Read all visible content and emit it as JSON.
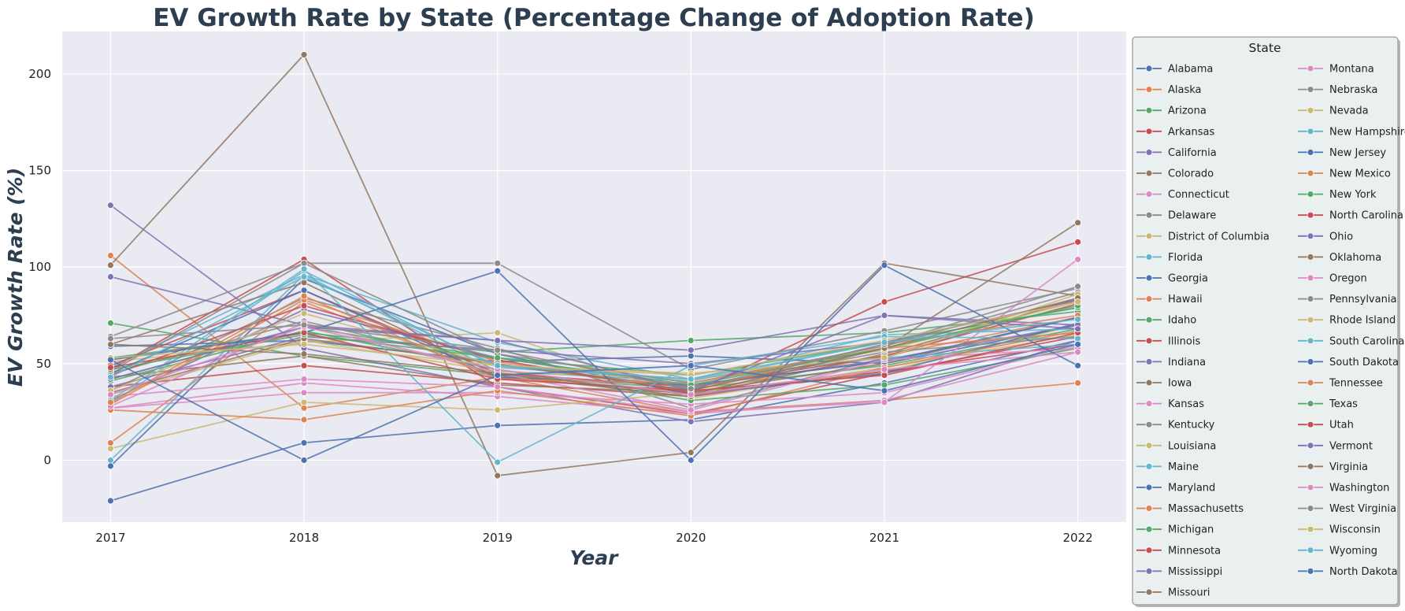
{
  "chart_data": {
    "type": "line",
    "title": "EV Growth Rate by State (Percentage Change of Adoption Rate)",
    "xlabel": "Year",
    "ylabel": "EV Growth Rate (%)",
    "x": [
      2017,
      2018,
      2019,
      2020,
      2021,
      2022
    ],
    "ylim": [
      -32,
      222
    ],
    "yticks": [
      0,
      50,
      100,
      150,
      200
    ],
    "grid": true,
    "legend_title": "State",
    "legend_position": "right-outside",
    "palette": [
      "#4c72b0",
      "#dd8452",
      "#55a868",
      "#c44e52",
      "#8172b3",
      "#937860",
      "#da8bc3",
      "#8c8c8c",
      "#ccb974",
      "#64b5cd"
    ],
    "series": [
      {
        "name": "Alabama",
        "values": [
          -21,
          9,
          18,
          21,
          40,
          62
        ]
      },
      {
        "name": "Alaska",
        "values": [
          106,
          27,
          43,
          25,
          31,
          40
        ]
      },
      {
        "name": "Arizona",
        "values": [
          71,
          54,
          44,
          37,
          49,
          68
        ]
      },
      {
        "name": "Arkansas",
        "values": [
          47,
          104,
          38,
          24,
          45,
          64
        ]
      },
      {
        "name": "California",
        "values": [
          132,
          58,
          38,
          20,
          30,
          62
        ]
      },
      {
        "name": "Colorado",
        "values": [
          101,
          210,
          -8,
          4,
          102,
          85
        ]
      },
      {
        "name": "Connecticut",
        "values": [
          27,
          40,
          33,
          24,
          31,
          56
        ]
      },
      {
        "name": "Delaware",
        "values": [
          36,
          84,
          58,
          27,
          53,
          84
        ]
      },
      {
        "name": "District of Columbia",
        "values": [
          6,
          30,
          26,
          35,
          46,
          70
        ]
      },
      {
        "name": "Florida",
        "values": [
          48,
          96,
          46,
          41,
          61,
          79
        ]
      },
      {
        "name": "Georgia",
        "values": [
          59,
          62,
          51,
          54,
          50,
          70
        ]
      },
      {
        "name": "Hawaii",
        "values": [
          9,
          82,
          43,
          35,
          54,
          74
        ]
      },
      {
        "name": "Idaho",
        "values": [
          53,
          66,
          56,
          62,
          66,
          77
        ]
      },
      {
        "name": "Illinois",
        "values": [
          38,
          49,
          40,
          33,
          46,
          60
        ]
      },
      {
        "name": "Indiana",
        "values": [
          31,
          78,
          53,
          38,
          52,
          70
        ]
      },
      {
        "name": "Iowa",
        "values": [
          43,
          54,
          39,
          35,
          50,
          74
        ]
      },
      {
        "name": "Kansas",
        "values": [
          27,
          35,
          35,
          29,
          35,
          59
        ]
      },
      {
        "name": "Kentucky",
        "values": [
          64,
          102,
          102,
          47,
          67,
          89
        ]
      },
      {
        "name": "Louisiana",
        "values": [
          51,
          61,
          66,
          32,
          48,
          65
        ]
      },
      {
        "name": "Maine",
        "values": [
          0,
          96,
          61,
          42,
          53,
          60
        ]
      },
      {
        "name": "Maryland",
        "values": [
          -3,
          94,
          55,
          34,
          45,
          71
        ]
      },
      {
        "name": "Massachusetts",
        "values": [
          26,
          21,
          36,
          23,
          48,
          67
        ]
      },
      {
        "name": "Michigan",
        "values": [
          41,
          67,
          47,
          31,
          39,
          58
        ]
      },
      {
        "name": "Minnesota",
        "values": [
          49,
          88,
          45,
          38,
          54,
          81
        ]
      },
      {
        "name": "Mississippi",
        "values": [
          95,
          70,
          62,
          57,
          75,
          70
        ]
      },
      {
        "name": "Missouri",
        "values": [
          60,
          92,
          44,
          33,
          55,
          83
        ]
      },
      {
        "name": "Montana",
        "values": [
          33,
          42,
          38,
          25,
          30,
          104
        ]
      },
      {
        "name": "Nebraska",
        "values": [
          45,
          72,
          49,
          38,
          56,
          64
        ]
      },
      {
        "name": "Nevada",
        "values": [
          34,
          62,
          46,
          42,
          57,
          82
        ]
      },
      {
        "name": "New Hampshire",
        "values": [
          29,
          98,
          48,
          42,
          65,
          68
        ]
      },
      {
        "name": "New Jersey",
        "values": [
          45,
          88,
          43,
          39,
          51,
          74
        ]
      },
      {
        "name": "New Mexico",
        "values": [
          29,
          83,
          51,
          36,
          60,
          75
        ]
      },
      {
        "name": "New York",
        "values": [
          42,
          69,
          53,
          44,
          61,
          79
        ]
      },
      {
        "name": "North Carolina",
        "values": [
          44,
          80,
          52,
          35,
          82,
          113
        ]
      },
      {
        "name": "Ohio",
        "values": [
          38,
          64,
          57,
          50,
          61,
          83
        ]
      },
      {
        "name": "Oklahoma",
        "values": [
          35,
          63,
          50,
          36,
          58,
          123
        ]
      },
      {
        "name": "Oregon",
        "values": [
          28,
          71,
          45,
          26,
          52,
          58
        ]
      },
      {
        "name": "Pennsylvania",
        "values": [
          46,
          102,
          55,
          40,
          59,
          87
        ]
      },
      {
        "name": "Rhode Island",
        "values": [
          36,
          76,
          49,
          45,
          53,
          86
        ]
      },
      {
        "name": "South Carolina",
        "values": [
          31,
          99,
          -1,
          49,
          64,
          63
        ]
      },
      {
        "name": "South Dakota",
        "values": [
          52,
          66,
          98,
          0,
          101,
          49
        ]
      },
      {
        "name": "Tennessee",
        "values": [
          30,
          85,
          42,
          40,
          58,
          66
        ]
      },
      {
        "name": "Texas",
        "values": [
          47,
          65,
          53,
          39,
          58,
          80
        ]
      },
      {
        "name": "Utah",
        "values": [
          48,
          66,
          42,
          36,
          44,
          66
        ]
      },
      {
        "name": "Vermont",
        "values": [
          42,
          69,
          62,
          36,
          75,
          68
        ]
      },
      {
        "name": "Virginia",
        "values": [
          60,
          55,
          45,
          34,
          58,
          84
        ]
      },
      {
        "name": "Washington",
        "values": [
          34,
          69,
          47,
          34,
          47,
          56
        ]
      },
      {
        "name": "West Virginia",
        "values": [
          63,
          70,
          57,
          37,
          60,
          90
        ]
      },
      {
        "name": "Wisconsin",
        "values": [
          53,
          60,
          49,
          44,
          62,
          82
        ]
      },
      {
        "name": "Wyoming",
        "values": [
          43,
          95,
          49,
          42,
          61,
          73
        ]
      },
      {
        "name": "North Dakota",
        "values": [
          52,
          0,
          44,
          49,
          36,
          60
        ]
      }
    ]
  }
}
